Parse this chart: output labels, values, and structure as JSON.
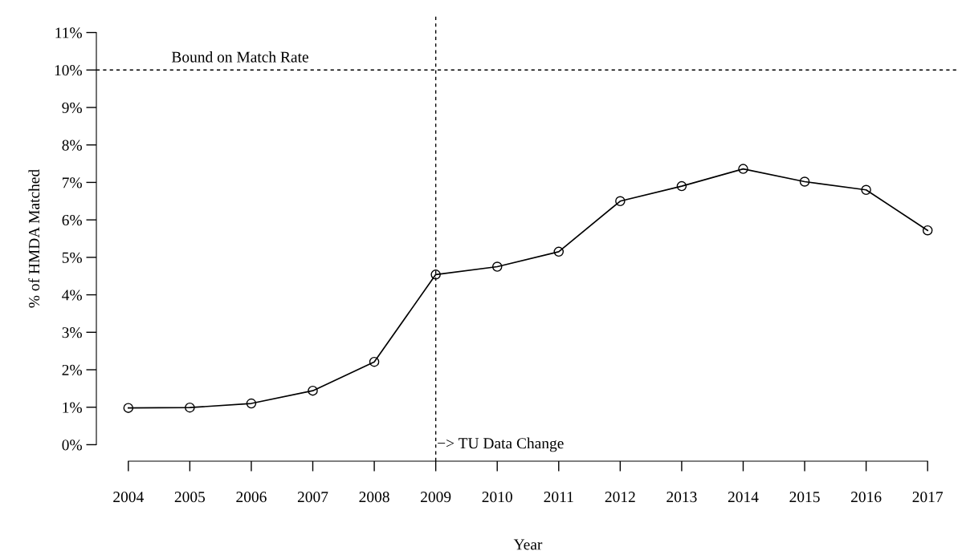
{
  "chart_data": {
    "type": "line",
    "xlabel": "Year",
    "ylabel": "% of HMDA Matched",
    "x": [
      2004,
      2005,
      2006,
      2007,
      2008,
      2009,
      2010,
      2011,
      2012,
      2013,
      2014,
      2015,
      2016,
      2017
    ],
    "series": [
      {
        "color": "#000000",
        "values": [
          0.98,
          0.99,
          1.1,
          1.44,
          2.21,
          4.54,
          4.75,
          5.15,
          6.5,
          6.9,
          7.36,
          7.02,
          6.8,
          5.72
        ]
      }
    ],
    "xlim": [
      2003.48,
      2017.52
    ],
    "xticks": [
      2004,
      2005,
      2006,
      2007,
      2008,
      2009,
      2010,
      2011,
      2012,
      2013,
      2014,
      2015,
      2016,
      2017
    ],
    "ylim": [
      -0.44,
      11.44
    ],
    "yticks": [
      {
        "value": 0,
        "label": "0%"
      },
      {
        "value": 1,
        "label": "1%"
      },
      {
        "value": 2,
        "label": "2%"
      },
      {
        "value": 3,
        "label": "3%"
      },
      {
        "value": 4,
        "label": "4%"
      },
      {
        "value": 5,
        "label": "5%"
      },
      {
        "value": 6,
        "label": "6%"
      },
      {
        "value": 7,
        "label": "7%"
      },
      {
        "value": 8,
        "label": "8%"
      },
      {
        "value": 9,
        "label": "9%"
      },
      {
        "value": 10,
        "label": "10%"
      },
      {
        "value": 11,
        "label": "11%"
      }
    ],
    "ref_lines": [
      {
        "axis": "y",
        "value": 10,
        "label": "Bound on Match Rate",
        "color": "#000000",
        "line_style": "dashed"
      },
      {
        "axis": "x",
        "value": 2009,
        "label": "−> TU Data Change",
        "color": "#000000",
        "line_style": "dashed"
      }
    ],
    "marker": "circle",
    "line_style": "solid",
    "grid": false,
    "legend": false
  }
}
